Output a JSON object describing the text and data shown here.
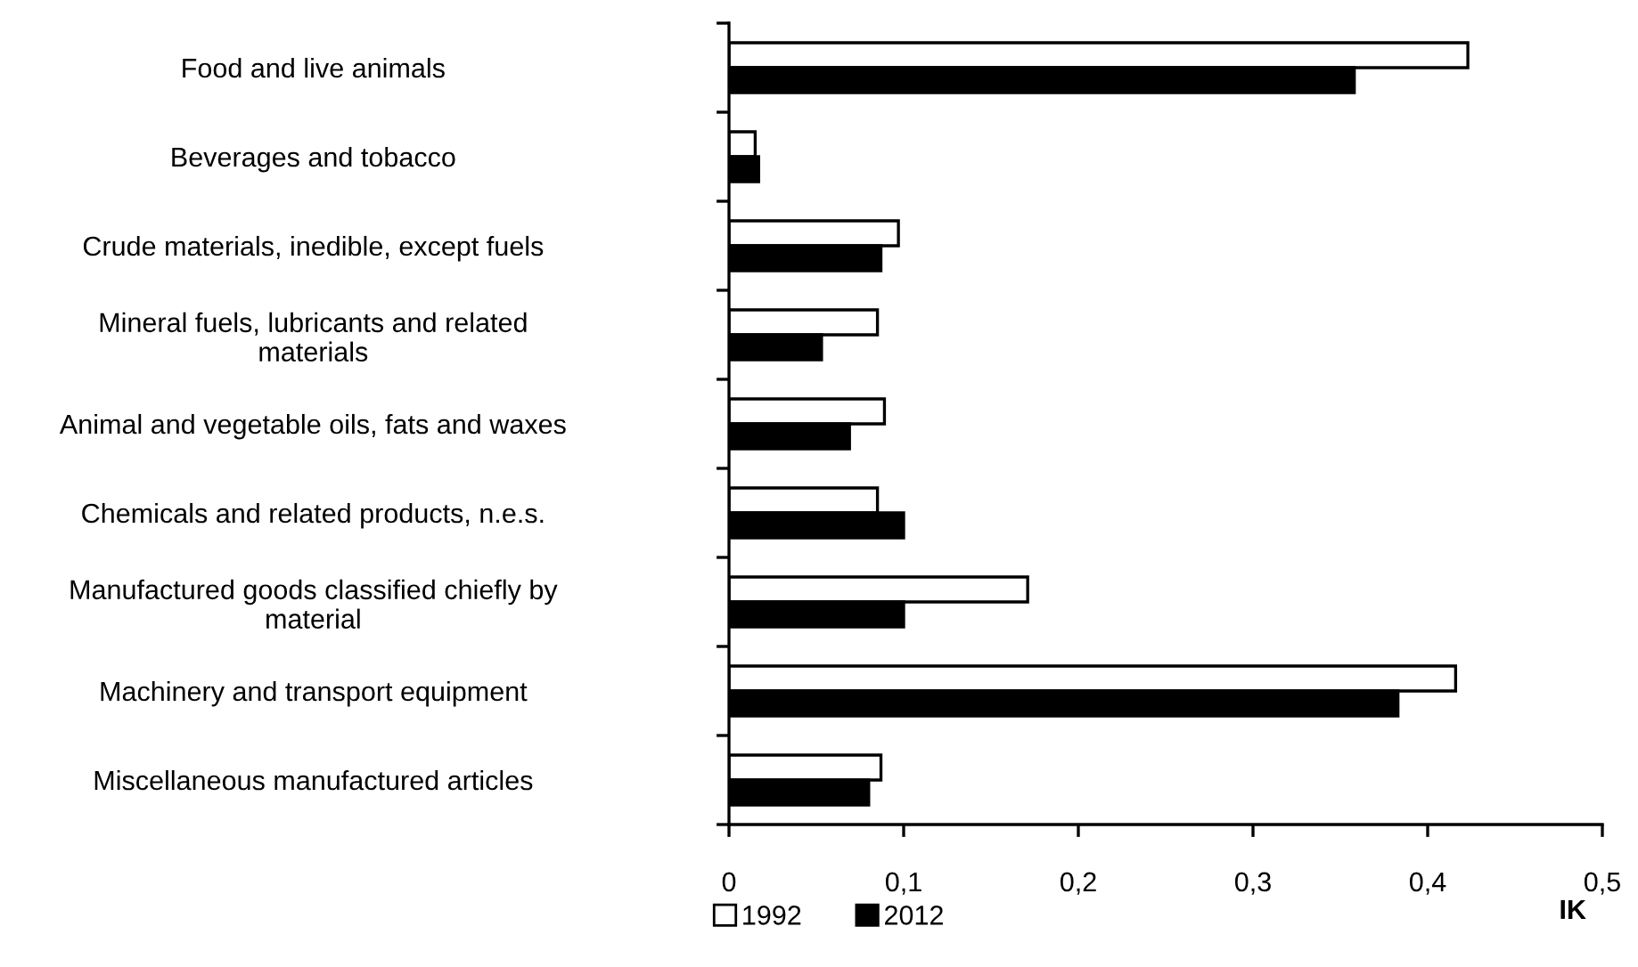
{
  "chart_data": {
    "type": "bar",
    "orientation": "horizontal",
    "xlabel": "IK",
    "categories": [
      "Food and live animals",
      "Beverages and tobacco",
      "Crude materials, inedible, except fuels",
      "Mineral fuels, lubricants and related\nmaterials",
      "Animal and vegetable oils, fats and waxes",
      "Chemicals and related products, n.e.s.",
      "Manufactured goods classified chiefly by\nmaterial",
      "Machinery and transport equipment",
      "Miscellaneous manufactured articles"
    ],
    "series": [
      {
        "name": "1992",
        "color": "#ffffff",
        "values": [
          0.423,
          0.015,
          0.097,
          0.085,
          0.089,
          0.085,
          0.171,
          0.416,
          0.087
        ]
      },
      {
        "name": "2012",
        "color": "#000000",
        "values": [
          0.358,
          0.017,
          0.087,
          0.053,
          0.069,
          0.1,
          0.1,
          0.383,
          0.08
        ]
      }
    ],
    "xlim": [
      0,
      0.5
    ],
    "xticks": [
      0,
      {
        "value": 0.1,
        "label": "0,1"
      },
      {
        "value": 0.2,
        "label": "0,2"
      },
      {
        "value": 0.3,
        "label": "0,3"
      },
      {
        "value": 0.4,
        "label": "0,4"
      },
      {
        "value": 0.5,
        "label": "0,5"
      }
    ],
    "grid": false,
    "legend": "bottom"
  }
}
